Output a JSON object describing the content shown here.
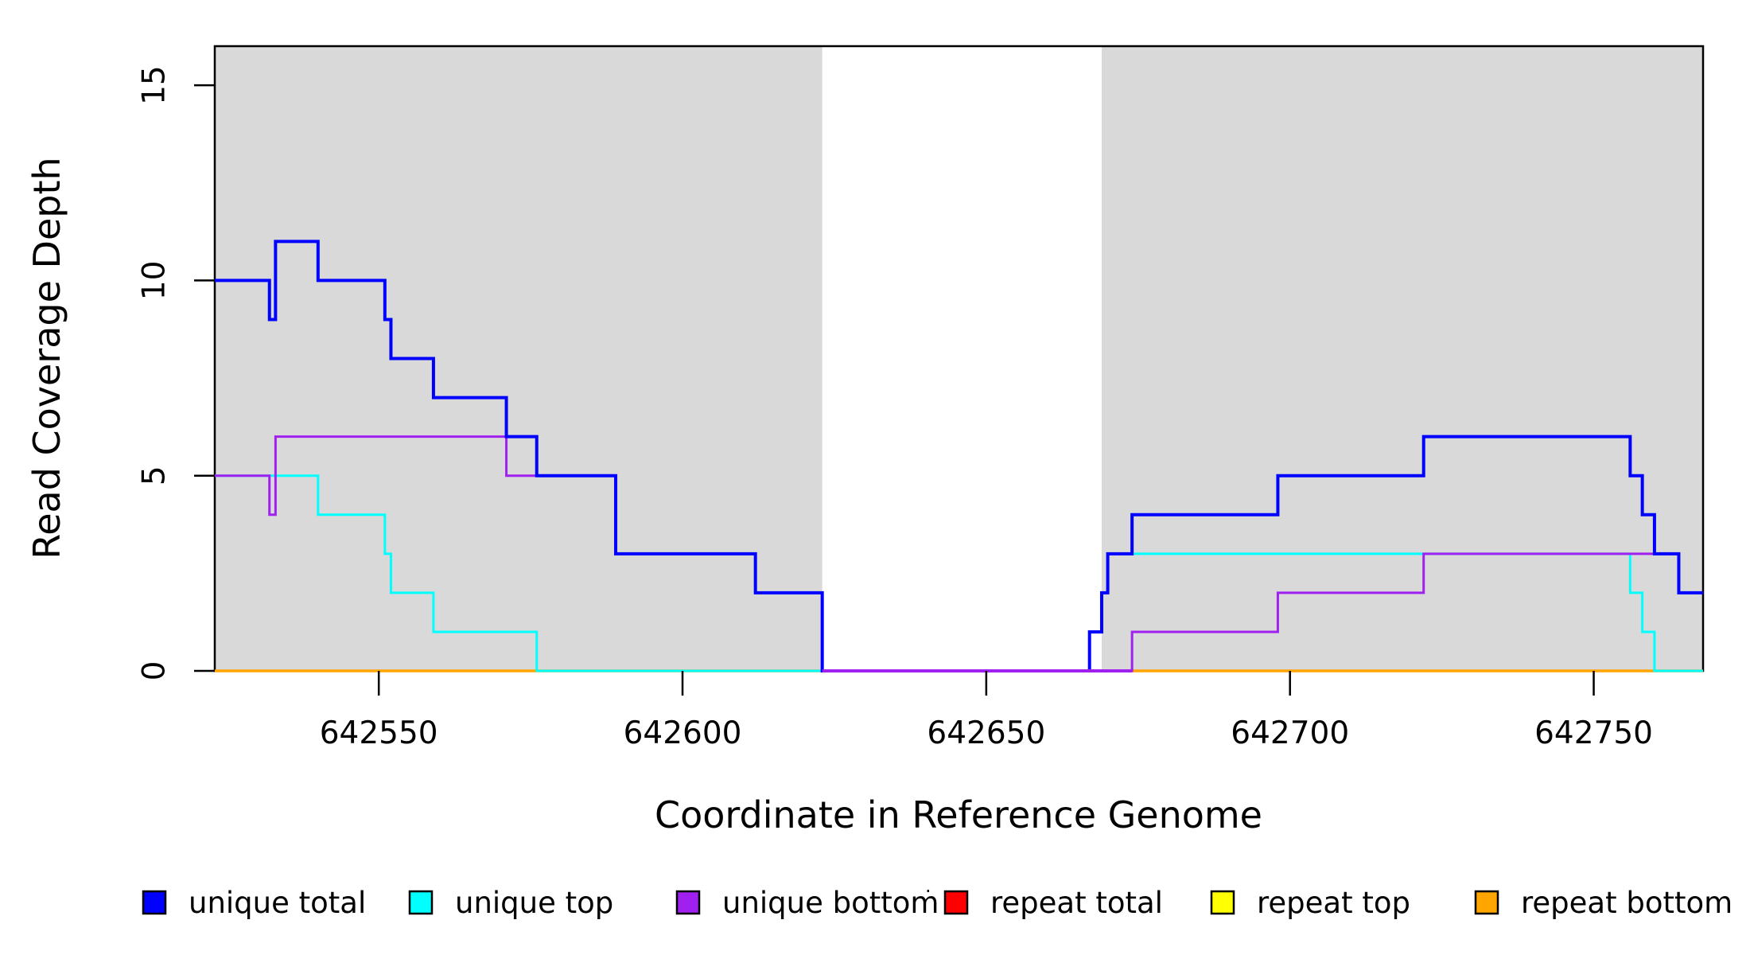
{
  "figure": {
    "xlabel": "Coordinate in Reference Genome",
    "ylabel": "Read Coverage Depth"
  },
  "chart_data": {
    "type": "line",
    "subtype": "step",
    "title": "",
    "xlabel": "Coordinate in Reference Genome",
    "ylabel": "Read Coverage Depth",
    "xlim": [
      642523,
      642768
    ],
    "ylim": [
      0,
      16
    ],
    "x_ticks": [
      "642550",
      "642600",
      "642650",
      "642700",
      "642750"
    ],
    "x_tick_values": [
      642550,
      642600,
      642650,
      642700,
      642750
    ],
    "y_ticks": [
      "0",
      "5",
      "10",
      "15"
    ],
    "y_tick_values": [
      0,
      5,
      10,
      15
    ],
    "grid": false,
    "legend_position": "bottom",
    "plot_background": "#ffffff",
    "shaded_regions": [
      {
        "x_from": 642523,
        "x_to": 642623,
        "color": "#d9d9d9"
      },
      {
        "x_from": 642669,
        "x_to": 642768,
        "color": "#d9d9d9"
      }
    ],
    "series": [
      {
        "name": "unique total",
        "color": "#0000ff",
        "width": 4,
        "x_end": 642768,
        "steps": [
          [
            642523,
            10
          ],
          [
            642532,
            9
          ],
          [
            642533,
            11
          ],
          [
            642540,
            10
          ],
          [
            642551,
            9
          ],
          [
            642552,
            8
          ],
          [
            642559,
            7
          ],
          [
            642571,
            6
          ],
          [
            642576,
            5
          ],
          [
            642589,
            3
          ],
          [
            642612,
            2
          ],
          [
            642623,
            0
          ],
          [
            642667,
            1
          ],
          [
            642669,
            2
          ],
          [
            642670,
            3
          ],
          [
            642674,
            4
          ],
          [
            642698,
            5
          ],
          [
            642722,
            6
          ],
          [
            642756,
            5
          ],
          [
            642758,
            4
          ],
          [
            642760,
            3
          ],
          [
            642764,
            2
          ]
        ]
      },
      {
        "name": "unique top",
        "color": "#00ffff",
        "width": 3,
        "x_end": 642768,
        "steps": [
          [
            642523,
            5
          ],
          [
            642540,
            4
          ],
          [
            642551,
            3
          ],
          [
            642552,
            2
          ],
          [
            642559,
            1
          ],
          [
            642576,
            0
          ],
          [
            642667,
            1
          ],
          [
            642669,
            2
          ],
          [
            642670,
            3
          ],
          [
            642756,
            2
          ],
          [
            642758,
            1
          ],
          [
            642760,
            0
          ]
        ]
      },
      {
        "name": "unique bottom",
        "color": "#a020f0",
        "width": 3,
        "x_end": 642768,
        "steps": [
          [
            642523,
            5
          ],
          [
            642532,
            4
          ],
          [
            642533,
            6
          ],
          [
            642571,
            5
          ],
          [
            642589,
            3
          ],
          [
            642612,
            2
          ],
          [
            642623,
            0
          ],
          [
            642674,
            1
          ],
          [
            642698,
            2
          ],
          [
            642722,
            3
          ],
          [
            642764,
            2
          ]
        ]
      },
      {
        "name": "repeat total",
        "color": "#ff0000",
        "width": 3,
        "value": 0,
        "ranges": [
          [
            642523,
            642623
          ],
          [
            642669,
            642768
          ]
        ]
      },
      {
        "name": "repeat top",
        "color": "#ffff00",
        "width": 3,
        "value": 0,
        "ranges": [
          [
            642523,
            642623
          ],
          [
            642669,
            642768
          ]
        ]
      },
      {
        "name": "repeat bottom",
        "color": "#ffa500",
        "width": 3.5,
        "value": 0,
        "ranges": [
          [
            642523,
            642623
          ],
          [
            642669,
            642768
          ]
        ]
      }
    ],
    "draw_order": [
      3,
      4,
      5,
      1,
      2,
      0
    ],
    "zero_overlay": {
      "series": "unique bottom",
      "color": "#a020f0",
      "width": 4,
      "x_from": 642623,
      "x_to": 642674,
      "value": 0
    }
  },
  "legend": {
    "items": [
      {
        "label": "unique total",
        "color": "#0000ff"
      },
      {
        "label": "unique top",
        "color": "#00ffff"
      },
      {
        "label": "unique bottom",
        "color": "#a020f0"
      },
      {
        "label": "repeat total",
        "color": "#ff0000"
      },
      {
        "label": "repeat top",
        "color": "#ffff00"
      },
      {
        "label": "repeat bottom",
        "color": "#ffa500"
      }
    ],
    "stray_dot": "·"
  }
}
